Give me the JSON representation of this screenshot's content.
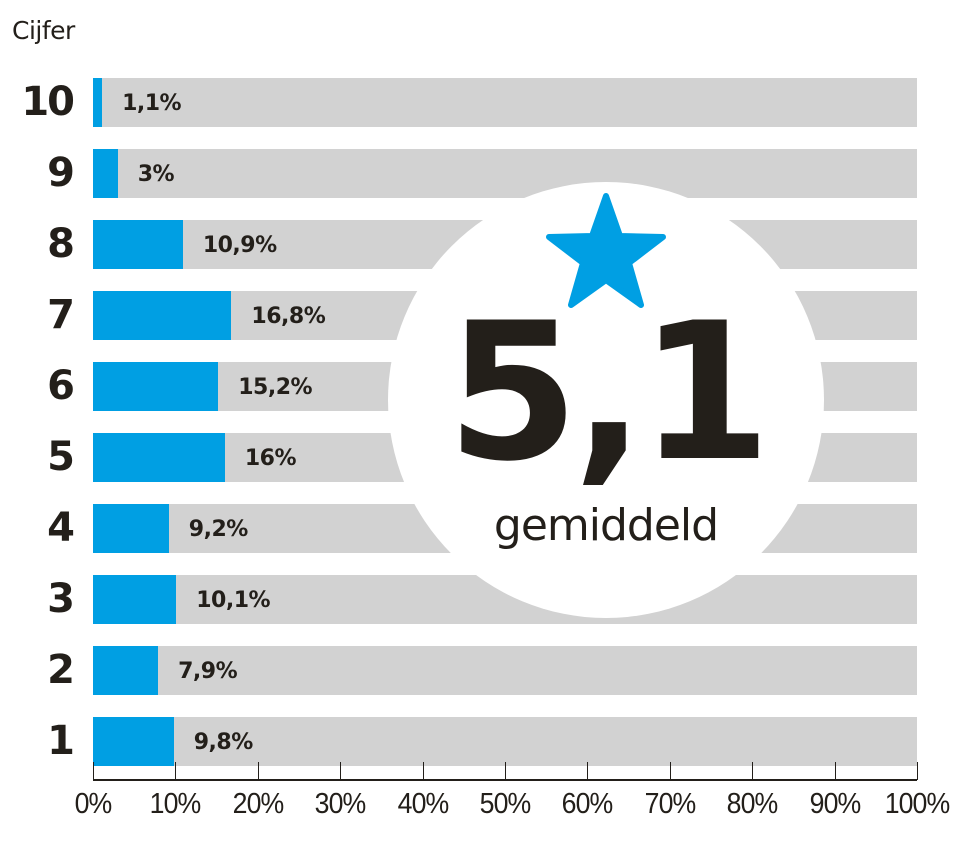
{
  "chart_data": {
    "type": "bar",
    "orientation": "horizontal",
    "title": "",
    "ylabel": "Cijfer",
    "xlabel": "",
    "categories": [
      "10",
      "9",
      "8",
      "7",
      "6",
      "5",
      "4",
      "3",
      "2",
      "1"
    ],
    "values": [
      1.1,
      3,
      10.9,
      16.8,
      15.2,
      16,
      9.2,
      10.1,
      7.9,
      9.8
    ],
    "value_labels": [
      "1,1%",
      "3%",
      "10,9%",
      "16,8%",
      "15,2%",
      "16%",
      "9,2%",
      "10,1%",
      "7,9%",
      "9,8%"
    ],
    "xlim": [
      0,
      100
    ],
    "xticks": [
      "0%",
      "10%",
      "20%",
      "30%",
      "40%",
      "50%",
      "60%",
      "70%",
      "80%",
      "90%",
      "100%"
    ],
    "grid": false,
    "legend": null,
    "annotation": {
      "icon": "star-icon",
      "value": "5,1",
      "label": "gemiddeld"
    },
    "colors": {
      "bar": "#009fe3",
      "track": "#d2d2d2",
      "text": "#231f1a",
      "star": "#009fe3",
      "badge": "#ffffff"
    }
  }
}
